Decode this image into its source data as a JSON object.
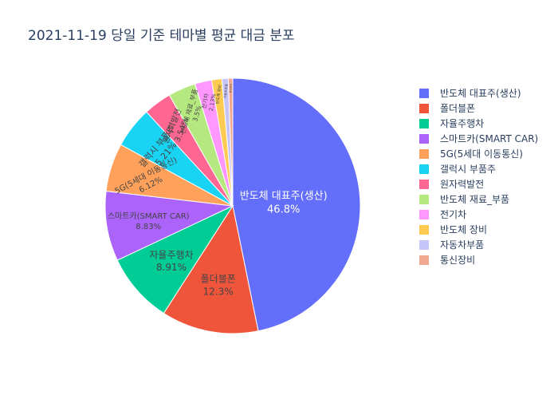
{
  "chart_data": {
    "type": "pie",
    "title": "2021-11-19 당일 기준 테마별 평균 대금 분포",
    "slices": [
      {
        "label": "반도체 대표주(생산)",
        "value": 46.8,
        "percent_text": "46.8%",
        "color": "#636efa"
      },
      {
        "label": "폴더블폰",
        "value": 12.3,
        "percent_text": "12.3%",
        "color": "#ef553b"
      },
      {
        "label": "자율주행차",
        "value": 8.91,
        "percent_text": "8.91%",
        "color": "#00cc96"
      },
      {
        "label": "스마트카(SMART CAR)",
        "value": 8.83,
        "percent_text": "8.83%",
        "color": "#ab63fa"
      },
      {
        "label": "5G(5세대 이동통신)",
        "value": 6.12,
        "percent_text": "6.12%",
        "color": "#ffa15a"
      },
      {
        "label": "갤럭시 부품주",
        "value": 5.21,
        "percent_text": "5.21%",
        "color": "#19d3f3"
      },
      {
        "label": "원자력발전",
        "value": 3.54,
        "percent_text": "3.54%",
        "color": "#ff6692"
      },
      {
        "label": "반도체 재료_부품",
        "value": 3.5,
        "percent_text": "3.5%",
        "color": "#b6e880"
      },
      {
        "label": "전기차",
        "value": 2.13,
        "percent_text": "2.13%",
        "color": "#ff97ff"
      },
      {
        "label": "반도체 장비",
        "value": 1.3,
        "percent_text": "",
        "color": "#fecb52"
      },
      {
        "label": "자동차부품",
        "value": 0.8,
        "percent_text": "",
        "color": "#c6c5fa"
      },
      {
        "label": "통신장비",
        "value": 0.56,
        "percent_text": "",
        "color": "#f0a990"
      }
    ],
    "legend_position": "right",
    "sort": "descending",
    "direction": "clockwise",
    "start_angle": "12 o'clock"
  }
}
